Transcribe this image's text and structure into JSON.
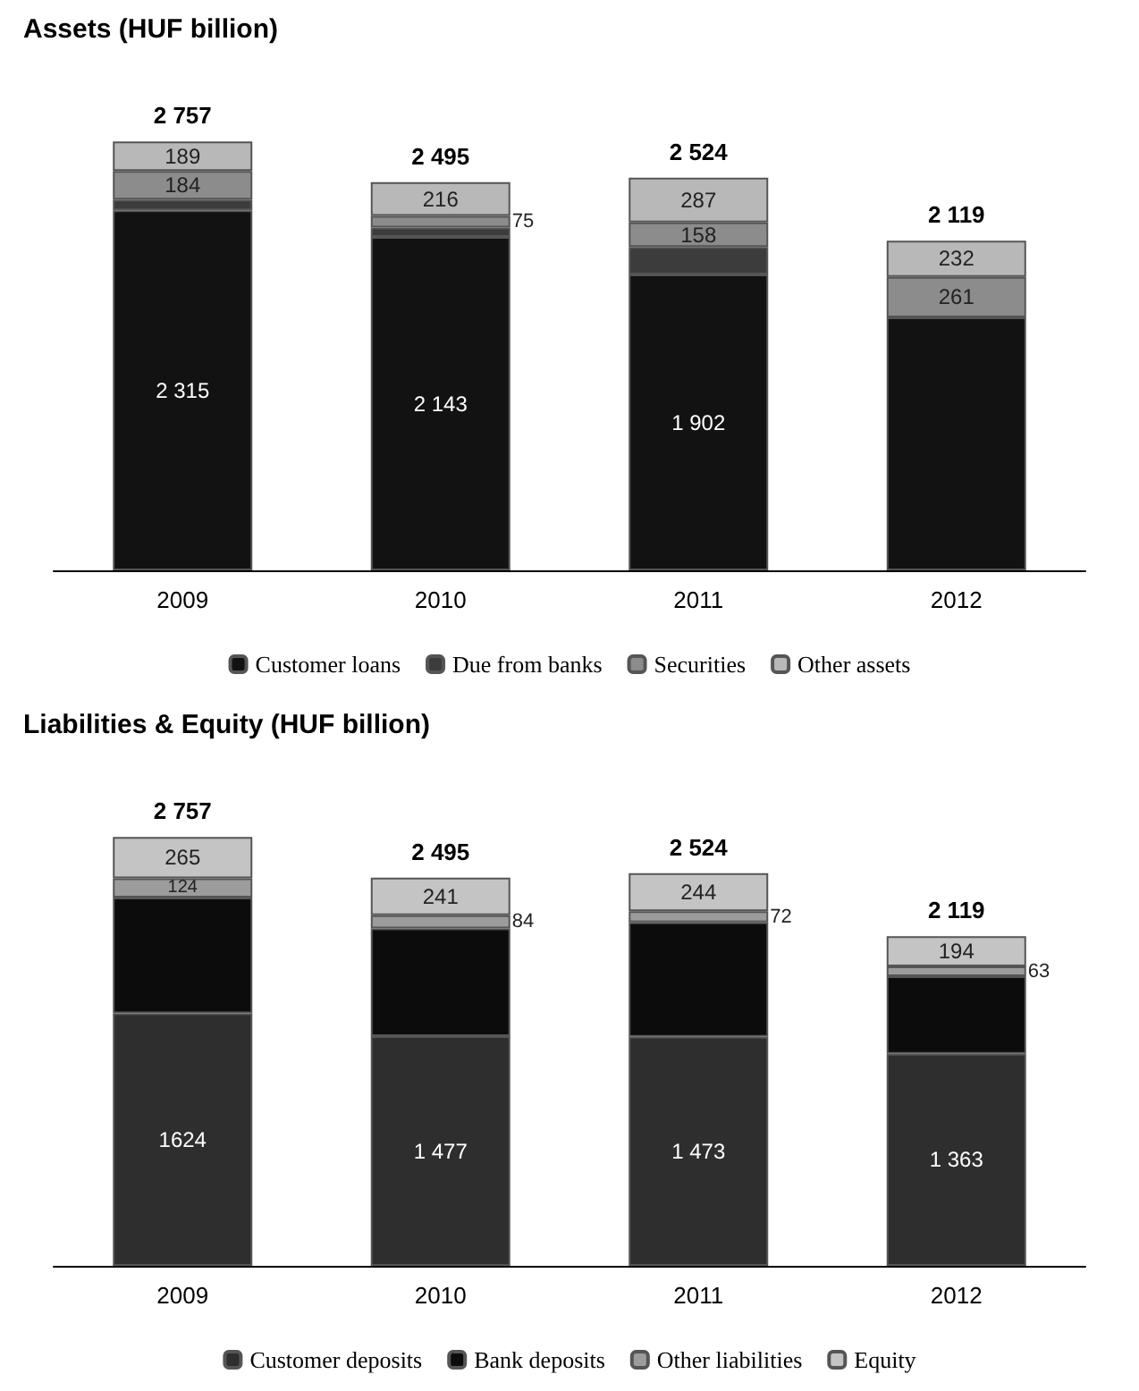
{
  "chart_data": [
    {
      "type": "bar",
      "title": "Assets (HUF billion)",
      "categories": [
        "2009",
        "2010",
        "2011",
        "2012"
      ],
      "stacked": true,
      "legend": "bottom",
      "series": [
        {
          "name": "Customer loans",
          "color": "#121212",
          "values": [
            2315,
            2143,
            1902,
            1626
          ],
          "value_labels": [
            "2 315",
            "2 143",
            "1 902",
            null
          ]
        },
        {
          "name": "Due from banks",
          "color": "#3c3c3c",
          "values": [
            69,
            61,
            177,
            null
          ],
          "value_labels": [
            null,
            null,
            null,
            null
          ]
        },
        {
          "name": "Securities",
          "color": "#8c8c8c",
          "values": [
            184,
            75,
            158,
            261
          ],
          "value_labels": [
            "184",
            "75",
            "158",
            "261"
          ]
        },
        {
          "name": "Other assets",
          "color": "#b8b8b8",
          "values": [
            189,
            216,
            287,
            232
          ],
          "value_labels": [
            "189",
            "216",
            "287",
            "232"
          ]
        }
      ],
      "totals": [
        "2 757",
        "2 495",
        "2 524",
        "2 119"
      ]
    },
    {
      "type": "bar",
      "title": "Liabilities & Equity (HUF billion)",
      "categories": [
        "2009",
        "2010",
        "2011",
        "2012"
      ],
      "stacked": true,
      "legend": "bottom",
      "series": [
        {
          "name": "Customer deposits",
          "color": "#2e2e2e",
          "values": [
            1624,
            1477,
            1473,
            1363
          ],
          "value_labels": [
            "1624",
            "1 477",
            "1 473",
            "1 363"
          ]
        },
        {
          "name": "Bank deposits",
          "color": "#0c0c0c",
          "values": [
            744,
            693,
            735,
            499
          ],
          "value_labels": [
            null,
            null,
            null,
            null
          ]
        },
        {
          "name": "Other liabilities",
          "color": "#9c9c9c",
          "values": [
            124,
            84,
            72,
            63
          ],
          "value_labels": [
            "124",
            "84",
            "72",
            "63"
          ]
        },
        {
          "name": "Equity",
          "color": "#c4c4c4",
          "values": [
            265,
            241,
            244,
            194
          ],
          "value_labels": [
            "265",
            "241",
            "244",
            "194"
          ]
        }
      ],
      "totals": [
        "2 757",
        "2 495",
        "2 524",
        "2 119"
      ]
    }
  ]
}
